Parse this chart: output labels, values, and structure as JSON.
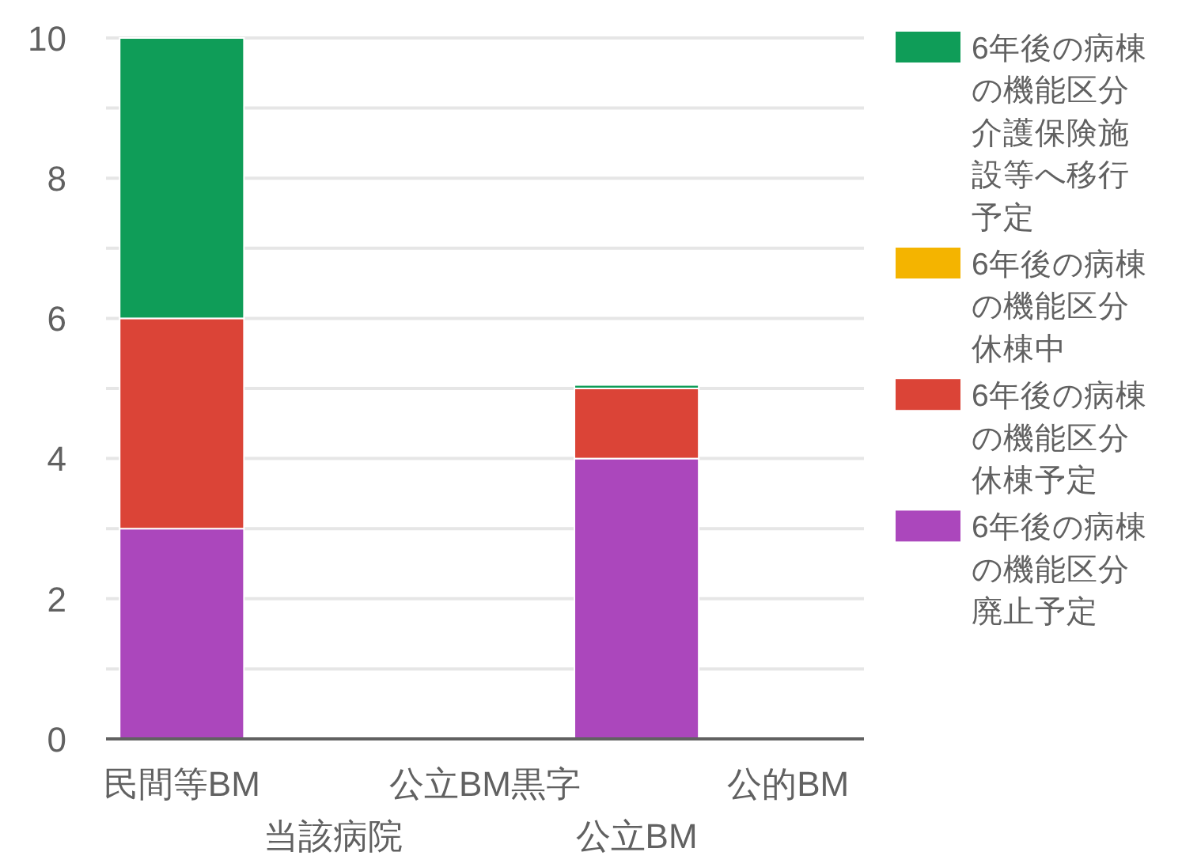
{
  "chart_data": {
    "type": "bar",
    "stacked": true,
    "categories": [
      "民間等BM",
      "当該病院",
      "公立BM黒字",
      "公立BM",
      "公的BM"
    ],
    "series": [
      {
        "name": "6年後の病棟の機能区分廃止予定",
        "color": "#ab47bc",
        "values": [
          3,
          null,
          null,
          4,
          null
        ]
      },
      {
        "name": "6年後の病棟の機能区分休棟予定",
        "color": "#db4437",
        "values": [
          3,
          null,
          null,
          1,
          null
        ]
      },
      {
        "name": "6年後の病棟の機能区分休棟中",
        "color": "#f4b400",
        "values": [
          null,
          null,
          null,
          null,
          null
        ]
      },
      {
        "name": "6年後の病棟の機能区分介護保険施設等へ移行予定",
        "color": "#0f9d58",
        "values": [
          4,
          null,
          null,
          0.05,
          null
        ]
      }
    ],
    "ylim": [
      0,
      10
    ],
    "yticks": [
      0,
      {
        "value": 1,
        "label": null
      },
      2,
      {
        "value": 3,
        "label": null
      },
      4,
      {
        "value": 5,
        "label": null
      },
      6,
      {
        "value": 7,
        "label": null
      },
      8,
      {
        "value": 9,
        "label": null
      },
      10
    ],
    "grid": "y",
    "legend": "right"
  }
}
